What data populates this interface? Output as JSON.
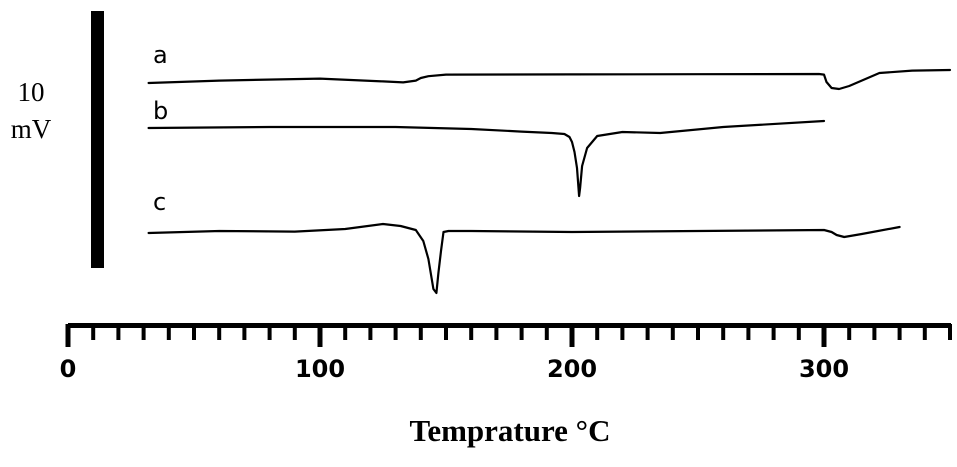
{
  "chart_data": {
    "type": "line",
    "xlabel": "Temprature °C",
    "xlim": [
      0,
      350
    ],
    "x_ticks": [
      0,
      100,
      200,
      300
    ],
    "x_tick_labels": [
      "0",
      "100",
      "200",
      "300"
    ],
    "minor_tick_step": 10,
    "scale_bar": {
      "value": "10",
      "unit": "mV"
    },
    "grid": false,
    "series": [
      {
        "name": "a",
        "x": [
          32,
          60,
          100,
          125,
          133,
          138,
          140,
          143,
          150,
          200,
          250,
          298,
          300,
          301,
          303,
          306,
          310,
          322,
          335,
          350
        ],
        "y": [
          0,
          0.12,
          0.22,
          0.08,
          0.03,
          0.12,
          0.25,
          0.34,
          0.42,
          0.43,
          0.44,
          0.45,
          0.42,
          0.05,
          -0.25,
          -0.3,
          -0.15,
          0.5,
          0.62,
          0.65
        ]
      },
      {
        "name": "b",
        "x": [
          32,
          80,
          130,
          160,
          180,
          192,
          197,
          199,
          200,
          201,
          202,
          202.8,
          203.2,
          204,
          206,
          210,
          220,
          235,
          260,
          300
        ],
        "y": [
          0,
          0.05,
          0.05,
          -0.05,
          -0.18,
          -0.25,
          -0.3,
          -0.45,
          -0.7,
          -1.2,
          -2.0,
          -3.4,
          -3.0,
          -1.9,
          -1.0,
          -0.4,
          -0.2,
          -0.25,
          0.05,
          0.35
        ]
      },
      {
        "name": "c",
        "x": [
          32,
          60,
          90,
          110,
          125,
          132,
          138,
          141,
          143,
          145,
          146.2,
          147,
          148,
          149,
          151,
          160,
          200,
          250,
          300,
          303,
          305,
          308,
          315,
          330
        ],
        "y": [
          0,
          0.1,
          0.07,
          0.2,
          0.45,
          0.35,
          0.15,
          -0.4,
          -1.3,
          -2.8,
          -3.0,
          -2.0,
          -0.9,
          0.05,
          0.1,
          0.1,
          0.05,
          0.1,
          0.15,
          0.05,
          -0.1,
          -0.2,
          -0.05,
          0.3
        ]
      }
    ]
  }
}
